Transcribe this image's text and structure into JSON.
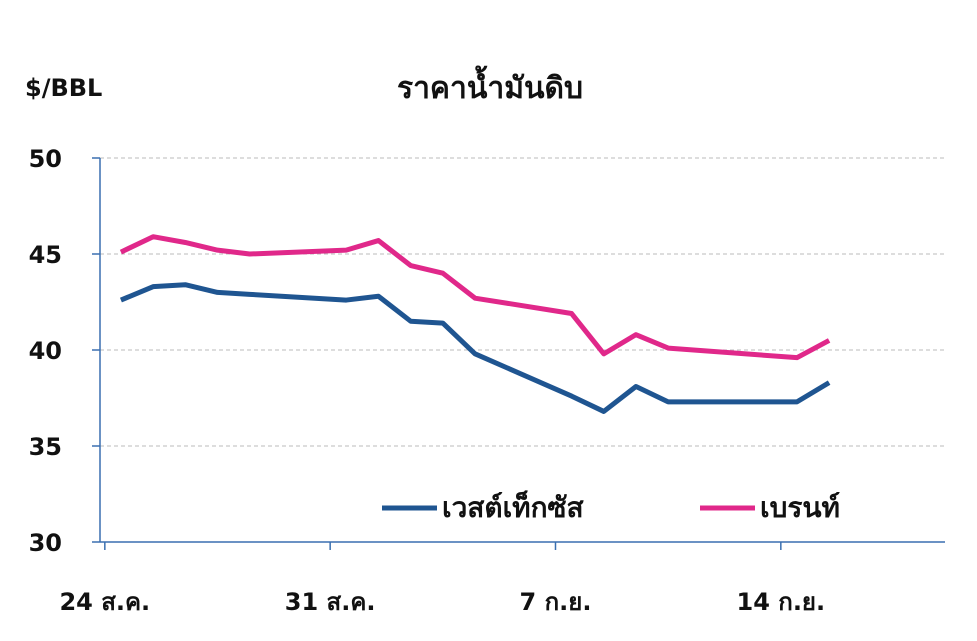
{
  "chart_data": {
    "type": "line",
    "title": "ราคาน้ำมันดิบ",
    "y_label": "$/BBL",
    "x": [
      0.5,
      1.5,
      2.5,
      3.5,
      4.5,
      7.5,
      8.5,
      9.5,
      10.5,
      11.5,
      14.5,
      15.5,
      16.5,
      17.5,
      21.5,
      22.5
    ],
    "xlim": [
      -0.15,
      26.1
    ],
    "xticks": [
      {
        "value": 0,
        "label": "24 ส.ค."
      },
      {
        "value": 7,
        "label": "31 ส.ค."
      },
      {
        "value": 14,
        "label": "7 ก.ย."
      },
      {
        "value": 21,
        "label": "14 ก.ย."
      }
    ],
    "ylim": [
      30,
      50
    ],
    "yticks": [
      30,
      35,
      40,
      45,
      50
    ],
    "grid": true,
    "series": [
      {
        "name": "เวสต์เท็กซัส",
        "color": "#1f5591",
        "values": [
          42.6,
          43.3,
          43.4,
          43.0,
          42.9,
          42.6,
          42.8,
          41.5,
          41.4,
          39.8,
          37.6,
          36.8,
          38.1,
          37.3,
          37.3,
          38.3
        ]
      },
      {
        "name": "เบรนท์",
        "color": "#e0288a",
        "values": [
          45.1,
          45.9,
          45.6,
          45.2,
          45.0,
          45.2,
          45.7,
          44.4,
          44.0,
          42.7,
          41.9,
          39.8,
          40.8,
          40.1,
          39.6,
          40.5
        ]
      }
    ]
  }
}
